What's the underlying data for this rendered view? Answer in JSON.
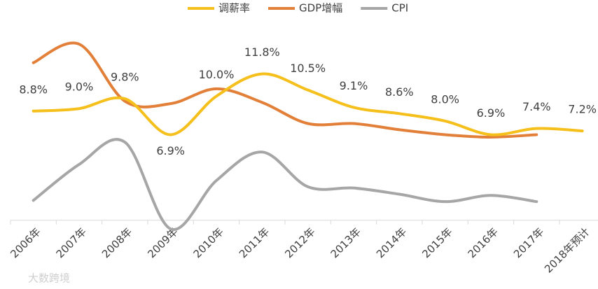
{
  "chart_data": {
    "type": "line",
    "categories": [
      "2006年",
      "2007年",
      "2008年",
      "2009年",
      "2010年",
      "2011年",
      "2012年",
      "2013年",
      "2014年",
      "2015年",
      "2016年",
      "2017年",
      "2018年预计"
    ],
    "series": [
      {
        "name": "调薪率",
        "color": "#f5bf1c",
        "values": [
          8.8,
          9.0,
          9.8,
          6.9,
          10.0,
          11.8,
          10.5,
          9.1,
          8.6,
          8.0,
          6.9,
          7.4,
          7.2
        ],
        "value_labels": [
          "8.8%",
          "9.0%",
          "9.8%",
          "6.9%",
          "10.0%",
          "11.8%",
          "10.5%",
          "9.1%",
          "8.6%",
          "8.0%",
          "6.9%",
          "7.4%",
          "7.2%"
        ]
      },
      {
        "name": "GDP增幅",
        "color": "#e2803a",
        "values": [
          12.7,
          14.2,
          9.6,
          9.4,
          10.6,
          9.5,
          7.8,
          7.8,
          7.3,
          6.9,
          6.7,
          6.9,
          null
        ]
      },
      {
        "name": "CPI",
        "color": "#a6a6a6",
        "values": [
          1.6,
          4.5,
          6.3,
          -0.7,
          3.2,
          5.5,
          2.7,
          2.6,
          2.1,
          1.5,
          2.0,
          1.5,
          null
        ]
      }
    ],
    "ylim": [
      -0.86,
      15.5
    ],
    "watermark": "大数跨境"
  }
}
